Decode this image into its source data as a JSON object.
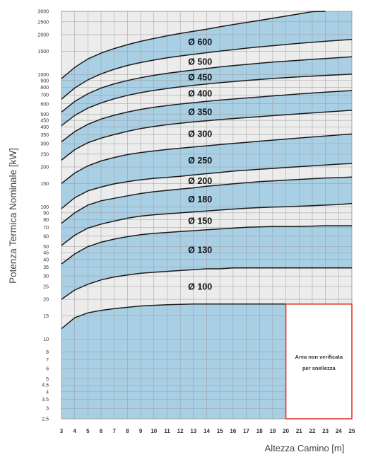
{
  "chart_data": {
    "type": "area",
    "xlabel": "Altezza Camino [m]",
    "ylabel": "Potenza Termica Nominale [kW]",
    "yscale": "log",
    "xlim": [
      3,
      25
    ],
    "ylim": [
      2.5,
      3000
    ],
    "grid": true,
    "x_ticks": [
      3,
      4,
      5,
      6,
      7,
      8,
      9,
      10,
      11,
      12,
      13,
      14,
      15,
      16,
      17,
      18,
      19,
      20,
      21,
      22,
      23,
      24,
      25
    ],
    "y_ticks": [
      2.5,
      3,
      3.5,
      4,
      4.5,
      5,
      6,
      7,
      8,
      10,
      15,
      20,
      25,
      30,
      35,
      40,
      45,
      50,
      60,
      70,
      80,
      90,
      100,
      150,
      200,
      250,
      300,
      350,
      400,
      450,
      500,
      600,
      700,
      800,
      900,
      1000,
      1500,
      2000,
      2500,
      3000
    ],
    "x": [
      3,
      4,
      5,
      6,
      7,
      8,
      9,
      10,
      11,
      12,
      13,
      14,
      15,
      16,
      17,
      18,
      19,
      20,
      21,
      22,
      23,
      24,
      25
    ],
    "series": [
      {
        "name": "",
        "values": [
          12,
          14.5,
          15.8,
          16.5,
          17,
          17.4,
          17.8,
          18,
          18.2,
          18.3,
          18.4,
          18.4,
          18.4,
          18.4,
          18.4,
          18.4,
          18.4,
          18.4,
          null,
          null,
          null,
          null,
          null
        ]
      },
      {
        "name": "Ø 100",
        "values": [
          20,
          23.5,
          26,
          28,
          29.5,
          30.5,
          31.5,
          32,
          32.5,
          33,
          33.5,
          34,
          34,
          34.5,
          34.5,
          34.5,
          34.5,
          34.5,
          34.5,
          34.5,
          34.5,
          34.5,
          34.5
        ]
      },
      {
        "name": "Ø 130",
        "values": [
          37,
          44,
          50,
          54,
          57,
          59.5,
          61.5,
          63,
          64,
          65,
          66,
          67,
          68,
          69,
          70,
          70.5,
          71,
          71,
          71,
          71.5,
          72,
          72,
          72
        ]
      },
      {
        "name": "Ø 150",
        "values": [
          51,
          61,
          69,
          74,
          78,
          82,
          85,
          87,
          88.5,
          90,
          91.5,
          93,
          94.5,
          96,
          97.5,
          98.5,
          99.5,
          100,
          101,
          102,
          103,
          104,
          106
        ]
      },
      {
        "name": "Ø 180",
        "values": [
          75,
          90,
          103,
          111,
          116,
          121,
          126,
          130,
          133,
          136,
          139,
          143,
          146,
          149,
          152,
          155,
          157,
          159,
          161,
          163,
          165,
          166,
          168
        ]
      },
      {
        "name": "Ø 200",
        "values": [
          97,
          117,
          132,
          141,
          149,
          155,
          160,
          164,
          167,
          170,
          174,
          178,
          182,
          186,
          189,
          192,
          195,
          198,
          201,
          204,
          207,
          210,
          212
        ]
      },
      {
        "name": "Ø 250",
        "values": [
          150,
          180,
          204,
          222,
          236,
          248,
          257,
          264,
          271,
          277,
          283,
          289,
          295,
          301,
          307,
          313,
          319,
          325,
          331,
          337,
          343,
          349,
          355
        ]
      },
      {
        "name": "Ø 300",
        "values": [
          225,
          270,
          305,
          330,
          352,
          372,
          390,
          405,
          417,
          428,
          438,
          447,
          456,
          464,
          472,
          480,
          488,
          496,
          504,
          512,
          520,
          528,
          536
        ]
      },
      {
        "name": "Ø 350",
        "values": [
          310,
          370,
          420,
          460,
          492,
          520,
          545,
          565,
          582,
          598,
          612,
          626,
          640,
          652,
          664,
          676,
          688,
          700,
          712,
          724,
          736,
          746,
          756
        ]
      },
      {
        "name": "Ø 400",
        "values": [
          410,
          490,
          557,
          610,
          655,
          695,
          728,
          758,
          783,
          807,
          828,
          847,
          866,
          883,
          900,
          916,
          932,
          946,
          960,
          972,
          984,
          994,
          1004
        ]
      },
      {
        "name": "Ø 450",
        "values": [
          520,
          625,
          715,
          790,
          850,
          900,
          945,
          985,
          1020,
          1050,
          1080,
          1110,
          1140,
          1165,
          1190,
          1215,
          1240,
          1260,
          1280,
          1300,
          1320,
          1340,
          1360
        ]
      },
      {
        "name": "Ø 500",
        "values": [
          650,
          790,
          910,
          1010,
          1095,
          1170,
          1230,
          1285,
          1335,
          1380,
          1420,
          1460,
          1500,
          1540,
          1580,
          1615,
          1650,
          1685,
          1720,
          1750,
          1780,
          1810,
          1840
        ]
      },
      {
        "name": "Ø 600",
        "values": [
          930,
          1130,
          1310,
          1450,
          1570,
          1680,
          1780,
          1870,
          1960,
          2040,
          2120,
          2200,
          2290,
          2380,
          2470,
          2560,
          2660,
          2760,
          2870,
          2980,
          3000,
          null,
          null
        ]
      }
    ],
    "note": {
      "line1": "Area non verificata",
      "line2": "per snellezza",
      "x_range": [
        20,
        25
      ],
      "y_range": [
        2.5,
        18.4
      ]
    }
  },
  "colors": {
    "blue": "#a9cfe5",
    "grey": "#ececec",
    "grid": "#9a9a9a",
    "curve": "#1a1a1a",
    "note_border": "#e32a1a",
    "note_fill": "#ffffff"
  }
}
